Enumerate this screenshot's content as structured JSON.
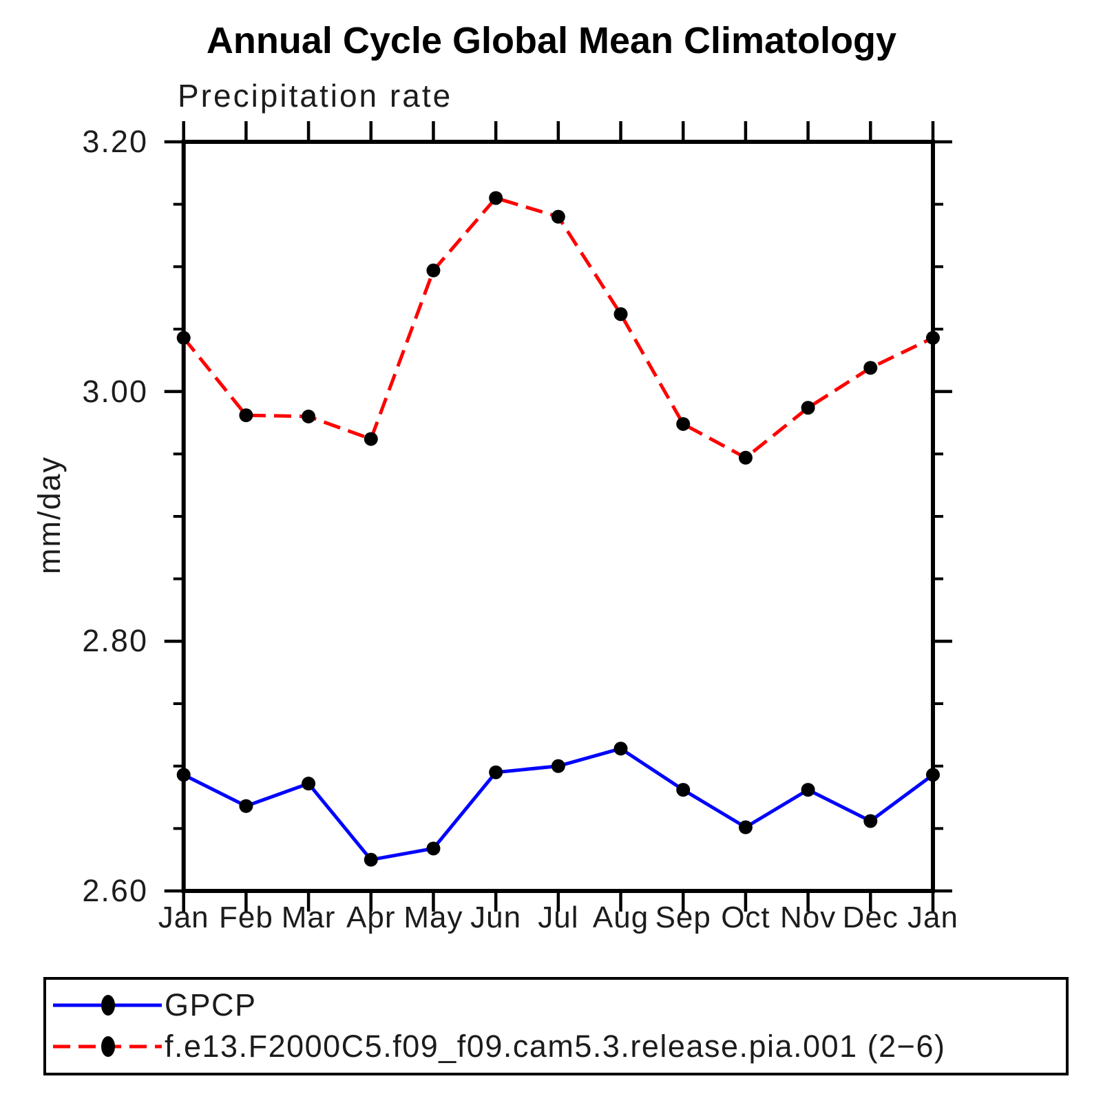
{
  "header": {
    "title": "Annual Cycle Global Mean Climatology",
    "subtitle": "Precipitation rate"
  },
  "chart_data": {
    "type": "line",
    "title": "Annual Cycle Global Mean Climatology",
    "subtitle": "Precipitation rate",
    "xlabel": "",
    "ylabel": "mm/day",
    "categories": [
      "Jan",
      "Feb",
      "Mar",
      "Apr",
      "May",
      "Jun",
      "Jul",
      "Aug",
      "Sep",
      "Oct",
      "Nov",
      "Dec",
      "Jan"
    ],
    "ylim": [
      2.6,
      3.2
    ],
    "ytick_major": [
      2.6,
      2.8,
      3.0,
      3.2
    ],
    "ytick_major_labels": [
      "2.60",
      "2.80",
      "3.00",
      "3.20"
    ],
    "ytick_minor_step": 0.05,
    "grid": false,
    "legend_position": "bottom",
    "marker": "filled-circle",
    "marker_color": "#000000",
    "axis_color": "#000000",
    "series": [
      {
        "name": "GPCP",
        "color": "#0000ff",
        "style": "solid",
        "values": [
          2.693,
          2.668,
          2.686,
          2.625,
          2.634,
          2.695,
          2.7,
          2.714,
          2.681,
          2.651,
          2.681,
          2.656,
          2.693
        ]
      },
      {
        "name": "f.e13.F2000C5.f09_f09.cam5.3.release.pia.001 (2−6)",
        "color": "#ff0000",
        "style": "dashed",
        "values": [
          3.043,
          2.981,
          2.98,
          2.962,
          3.097,
          3.155,
          3.14,
          3.062,
          2.974,
          2.947,
          2.987,
          3.019,
          3.043
        ]
      }
    ]
  }
}
